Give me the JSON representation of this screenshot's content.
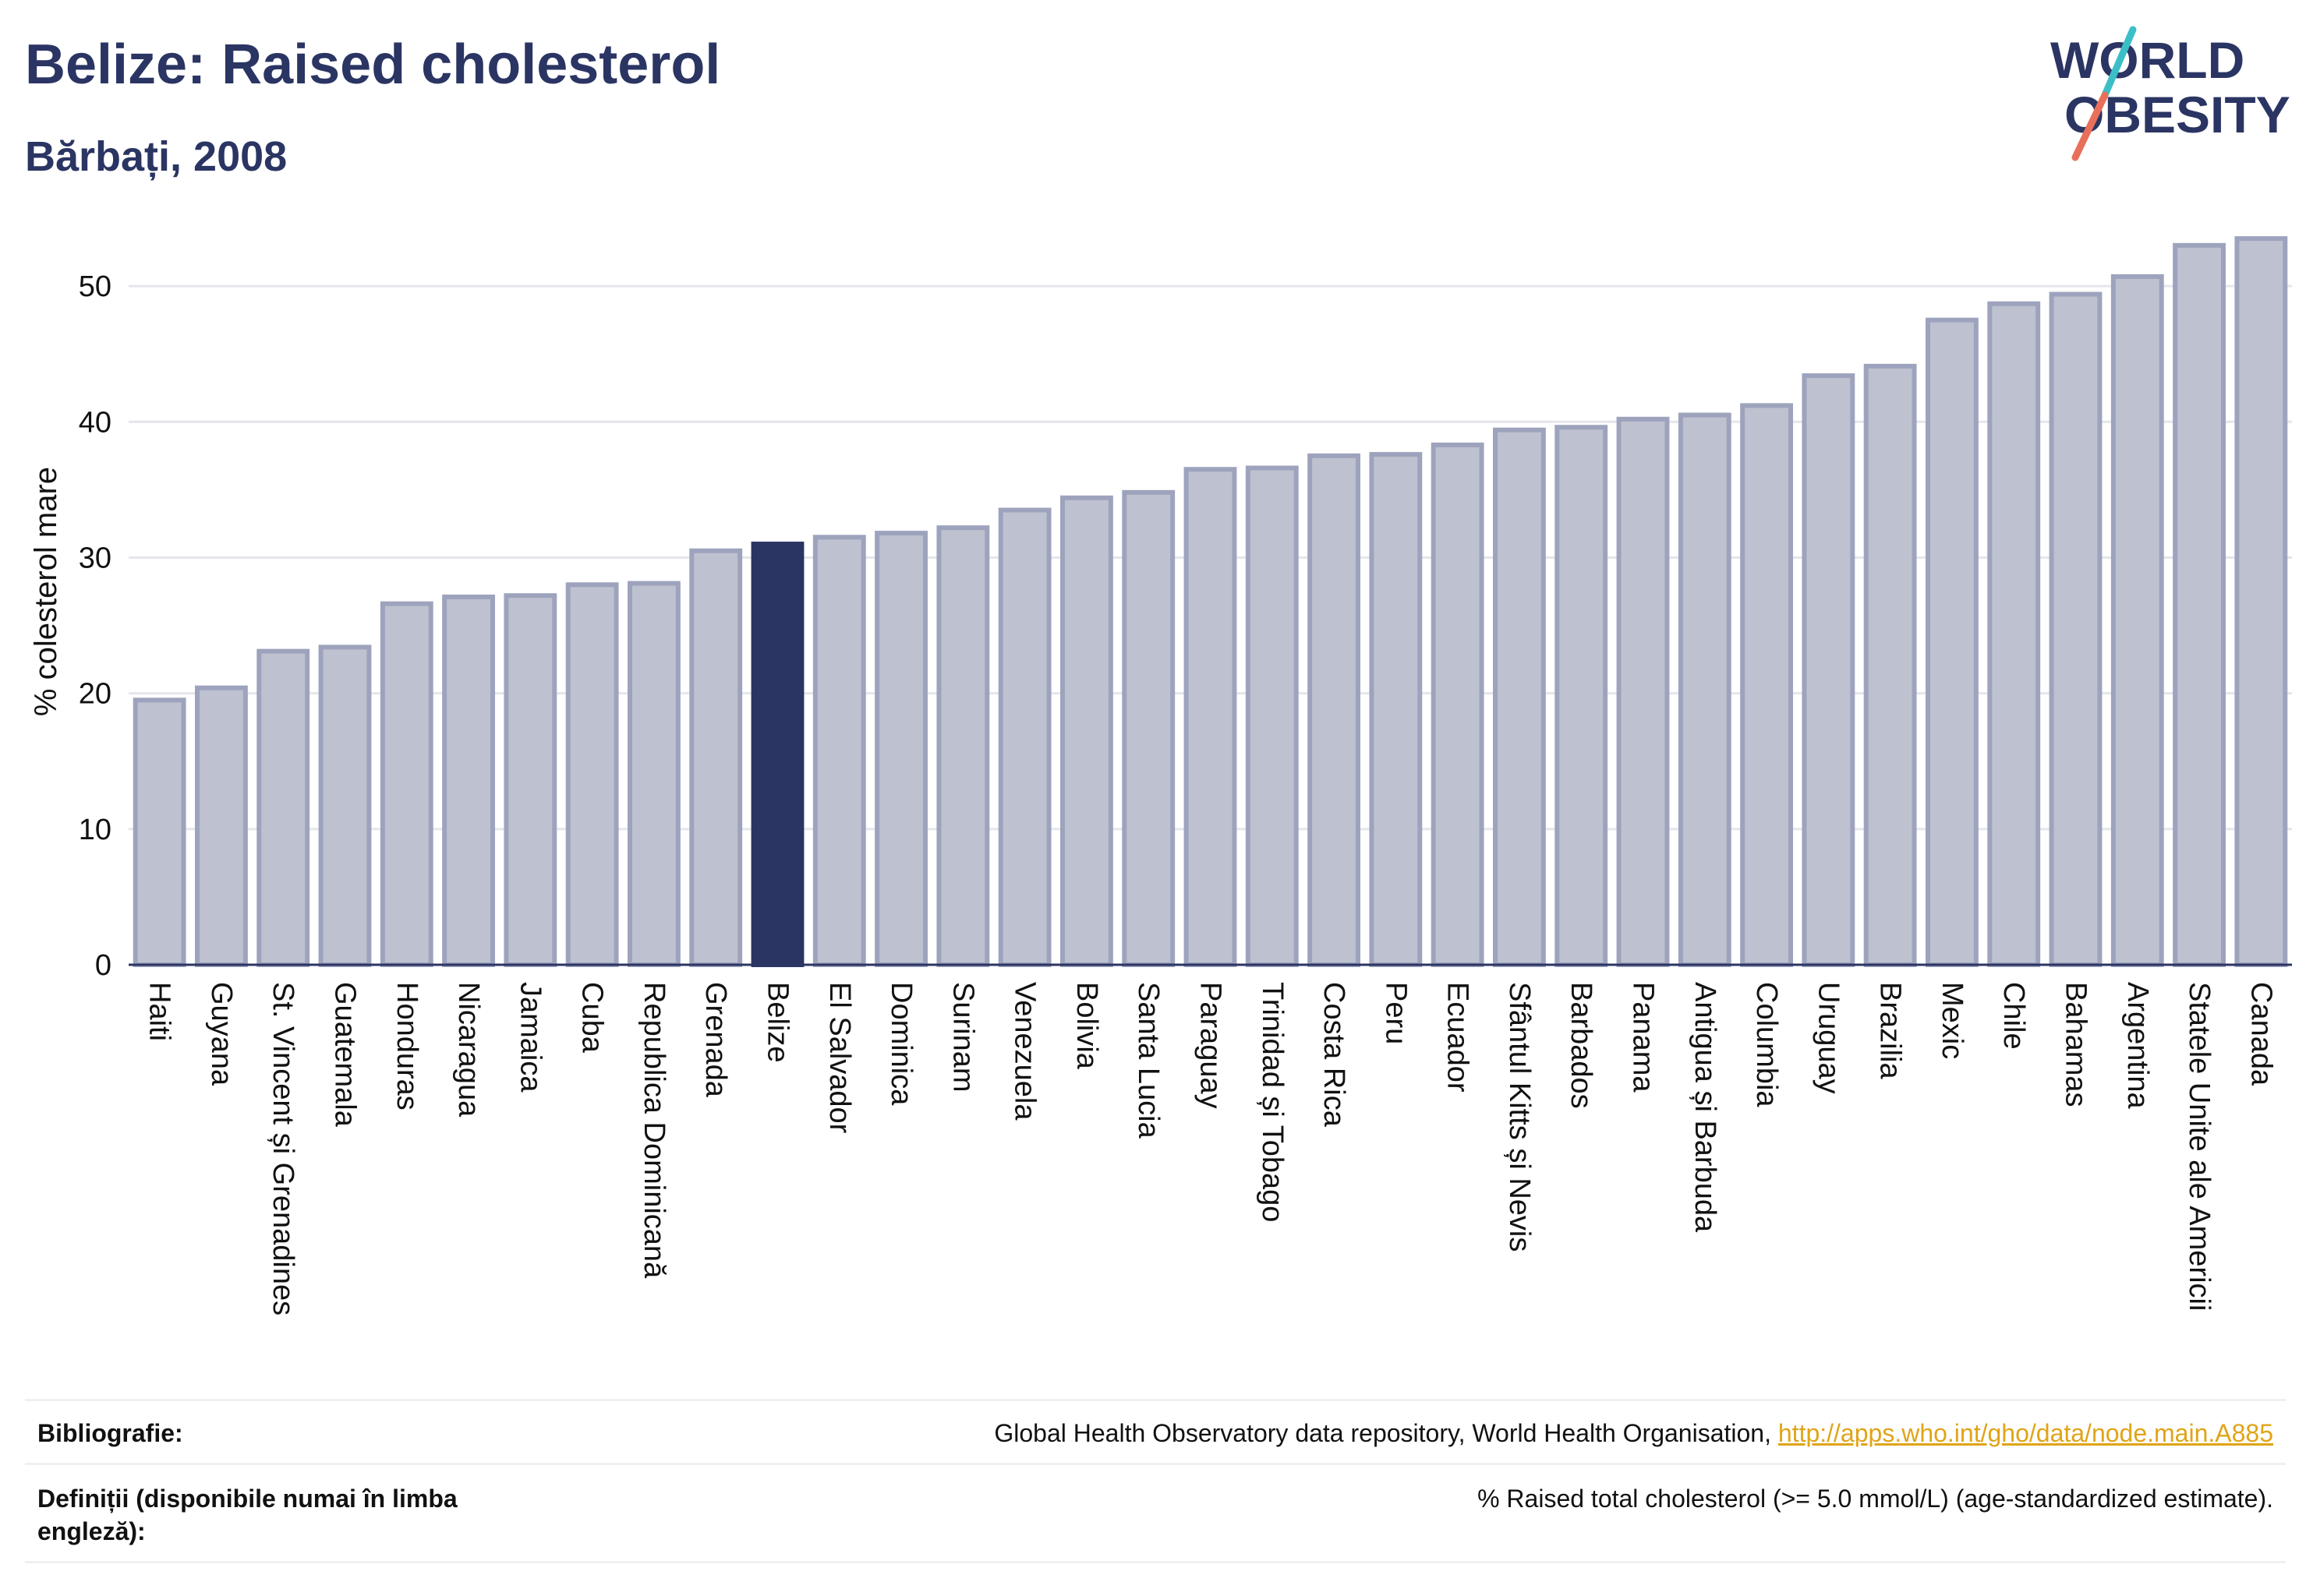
{
  "header": {
    "title": "Belize: Raised cholesterol",
    "subtitle": "Bărbați, 2008"
  },
  "logo": {
    "line1": "WORLD",
    "line2": "OBESITY"
  },
  "colors": {
    "text": "#2b3563",
    "bar_default": "#bec1cf",
    "bar_border": "#9ea3bd",
    "bar_highlight": "#2b3563",
    "link": "#e0a417",
    "logo_teal": "#3bbfc7",
    "logo_coral": "#e8705a"
  },
  "chart_data": {
    "type": "bar",
    "title": "Belize: Raised cholesterol",
    "subtitle": "Bărbați, 2008",
    "ylabel": "% colesterol mare",
    "xlabel": "",
    "ylim": [
      0,
      55
    ],
    "yticks": [
      0,
      10,
      20,
      30,
      40,
      50
    ],
    "grid": true,
    "highlight": "Belize",
    "categories": [
      "Haiti",
      "Guyana",
      "St. Vincent și Grenadines",
      "Guatemala",
      "Honduras",
      "Nicaragua",
      "Jamaica",
      "Cuba",
      "Republica Dominicană",
      "Grenada",
      "Belize",
      "El Salvador",
      "Dominica",
      "Surinam",
      "Venezuela",
      "Bolivia",
      "Santa Lucia",
      "Paraguay",
      "Trinidad și Tobago",
      "Costa Rica",
      "Peru",
      "Ecuador",
      "Sfântul Kitts și Nevis",
      "Barbados",
      "Panama",
      "Antigua și Barbuda",
      "Columbia",
      "Uruguay",
      "Brazilia",
      "Mexic",
      "Chile",
      "Bahamas",
      "Argentina",
      "Statele Unite ale Americii",
      "Canada"
    ],
    "values": [
      19.5,
      20.4,
      23.1,
      23.4,
      26.6,
      27.1,
      27.2,
      28.0,
      28.1,
      30.5,
      31.0,
      31.5,
      31.8,
      32.2,
      33.5,
      34.4,
      34.8,
      36.5,
      36.6,
      37.5,
      37.6,
      38.3,
      39.4,
      39.6,
      40.2,
      40.5,
      41.2,
      43.4,
      44.1,
      47.5,
      48.7,
      49.4,
      50.7,
      53.0,
      53.5
    ]
  },
  "footer": {
    "bibliography_label": "Bibliografie:",
    "bibliography_text": "Global Health Observatory data repository, World Health Organisation,",
    "bibliography_link": "http://apps.who.int/gho/data/node.main.A885",
    "definitions_label": "Definiții (disponibile numai în limba engleză):",
    "definitions_text": "% Raised total cholesterol (>= 5.0 mmol/L) (age-standardized estimate)."
  }
}
